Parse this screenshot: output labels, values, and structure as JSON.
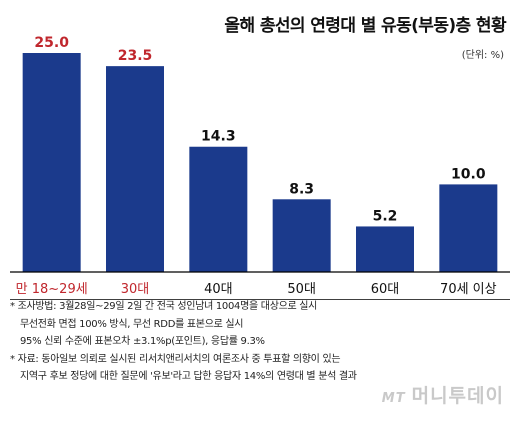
{
  "header": {
    "title": "올해 총선의 연령대 별 유동(부동)층 현황",
    "unit": "(단위: %)"
  },
  "colors": {
    "bar": "#1b3a8c",
    "highlight_label": "#c0272d",
    "normal_label": "#111111",
    "axis": "#000000"
  },
  "chart_data": {
    "type": "bar",
    "categories": [
      "만 18~29세",
      "30대",
      "40대",
      "50대",
      "60대",
      "70세 이상"
    ],
    "values": [
      25.0,
      23.5,
      14.3,
      8.3,
      5.2,
      10.0
    ],
    "value_labels": [
      "25.0",
      "23.5",
      "14.3",
      "8.3",
      "5.2",
      "10.0"
    ],
    "highlighted": [
      true,
      true,
      false,
      false,
      false,
      false
    ],
    "ylim": [
      0,
      25.0
    ],
    "grid": false,
    "title": "올해 총선의 연령대 별 유동(부동)층 현황",
    "xlabel": "",
    "ylabel": ""
  },
  "notes": [
    "* 조사방법: 3월28일~29일 2일 간 전국 성인남녀 1004명을 대상으로 실시",
    "무선전화 면접 100% 방식, 무선 RDD를 표본으로 실시",
    "95% 신뢰 수준에 표본오차 ±3.1%p(포인트), 응답률 9.3%",
    "* 자료: 동아일보 의뢰로 실시된 리서치앤리서치의 여론조사 중 투표할 의향이 있는",
    "지역구 후보 정당에 대한 질문에 '유보'라고 답한 응답자 14%의 연령대 별 분석 결과"
  ],
  "watermark": {
    "prefix": "MT",
    "text": "머니투데이"
  }
}
